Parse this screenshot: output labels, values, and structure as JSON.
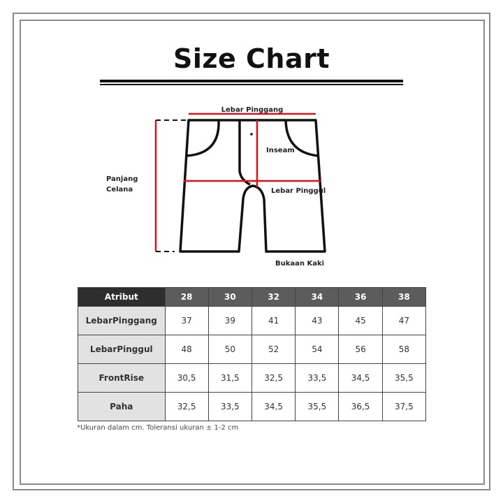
{
  "title": "Size Chart",
  "diagram": {
    "labels": {
      "waist": "Lebar Pinggang",
      "inseam": "Inseam",
      "hip": "Lebar Pinggul",
      "leg_opening": "Bukaan Kaki",
      "length_line1": "Panjang",
      "length_line2": "Celana"
    },
    "measure_color": "#e0101a"
  },
  "table": {
    "header": [
      "Atribut",
      "28",
      "30",
      "32",
      "34",
      "36",
      "38"
    ],
    "rows": [
      {
        "label": "LebarPinggang",
        "values": [
          "37",
          "39",
          "41",
          "43",
          "45",
          "47"
        ]
      },
      {
        "label": "LebarPinggul",
        "values": [
          "48",
          "50",
          "52",
          "54",
          "56",
          "58"
        ]
      },
      {
        "label": "FrontRise",
        "values": [
          "30,5",
          "31,5",
          "32,5",
          "33,5",
          "34,5",
          "35,5"
        ]
      },
      {
        "label": "Paha",
        "values": [
          "32,5",
          "33,5",
          "34,5",
          "35,5",
          "36,5",
          "37,5"
        ]
      }
    ]
  },
  "note": "*Ukuran dalam cm. Toleransi ukuran ± 1-2 cm"
}
